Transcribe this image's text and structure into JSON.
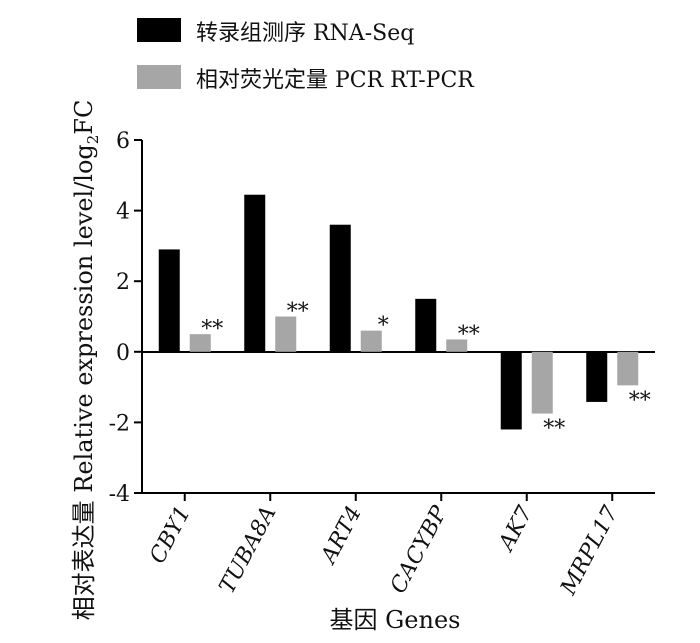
{
  "chart_data": {
    "type": "bar",
    "categories": [
      "CBY1",
      "TUBA8A",
      "ART4",
      "CACYBP",
      "AK7",
      "MRPL17"
    ],
    "series": [
      {
        "name": "转录组测序 RNA-Seq",
        "values": [
          2.9,
          4.45,
          3.6,
          1.5,
          -2.2,
          -1.42
        ],
        "color": "#000000"
      },
      {
        "name": "相对荧光定量 PCR RT-PCR",
        "values": [
          0.5,
          1.0,
          0.6,
          0.35,
          -1.75,
          -0.95
        ],
        "color": "#a6a6a6"
      }
    ],
    "significance": [
      "**",
      "**",
      "*",
      "**",
      "**",
      "**"
    ],
    "yticks": [
      "6",
      "4",
      "2",
      "0",
      "-2",
      "-4"
    ],
    "ytick_values": [
      6,
      4,
      2,
      0,
      -2,
      -4
    ],
    "ylim": [
      -4,
      6
    ],
    "xlabel": "基因 Genes",
    "ylabel": "相对表达量 Relative expression level/log",
    "ylabel_sub": "2",
    "ylabel_tail": "FC",
    "grid": false,
    "legend_position": "top"
  }
}
